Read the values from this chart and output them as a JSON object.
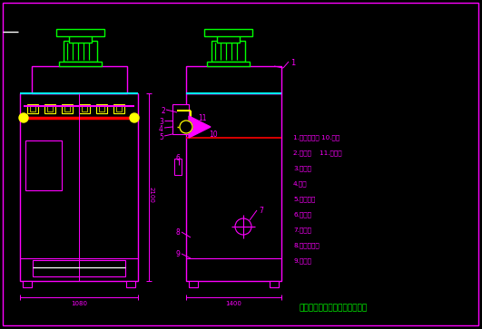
{
  "bg_color": "#000000",
  "magenta": "#ff00ff",
  "cyan": "#00ffff",
  "green": "#00ff00",
  "yellow": "#ffff00",
  "red": "#ff0000",
  "white": "#ffffff",
  "title_company": "北京华康中天国际环保有限公司",
  "title_color": "#00ff00",
  "legend_lines": [
    "1.除尘器风机 10.视镜",
    "2.气包管    11.喷吹管",
    "3.脉冲阀",
    "4.气包",
    "5.气包支架",
    "6.控制柜",
    "7.排风口",
    "8.仓式输灰器",
    "9.卸灰阀"
  ],
  "legend_color": "#ff00ff",
  "dim_1080": "1080",
  "dim_2100": "2100",
  "dim_1400": "1400"
}
